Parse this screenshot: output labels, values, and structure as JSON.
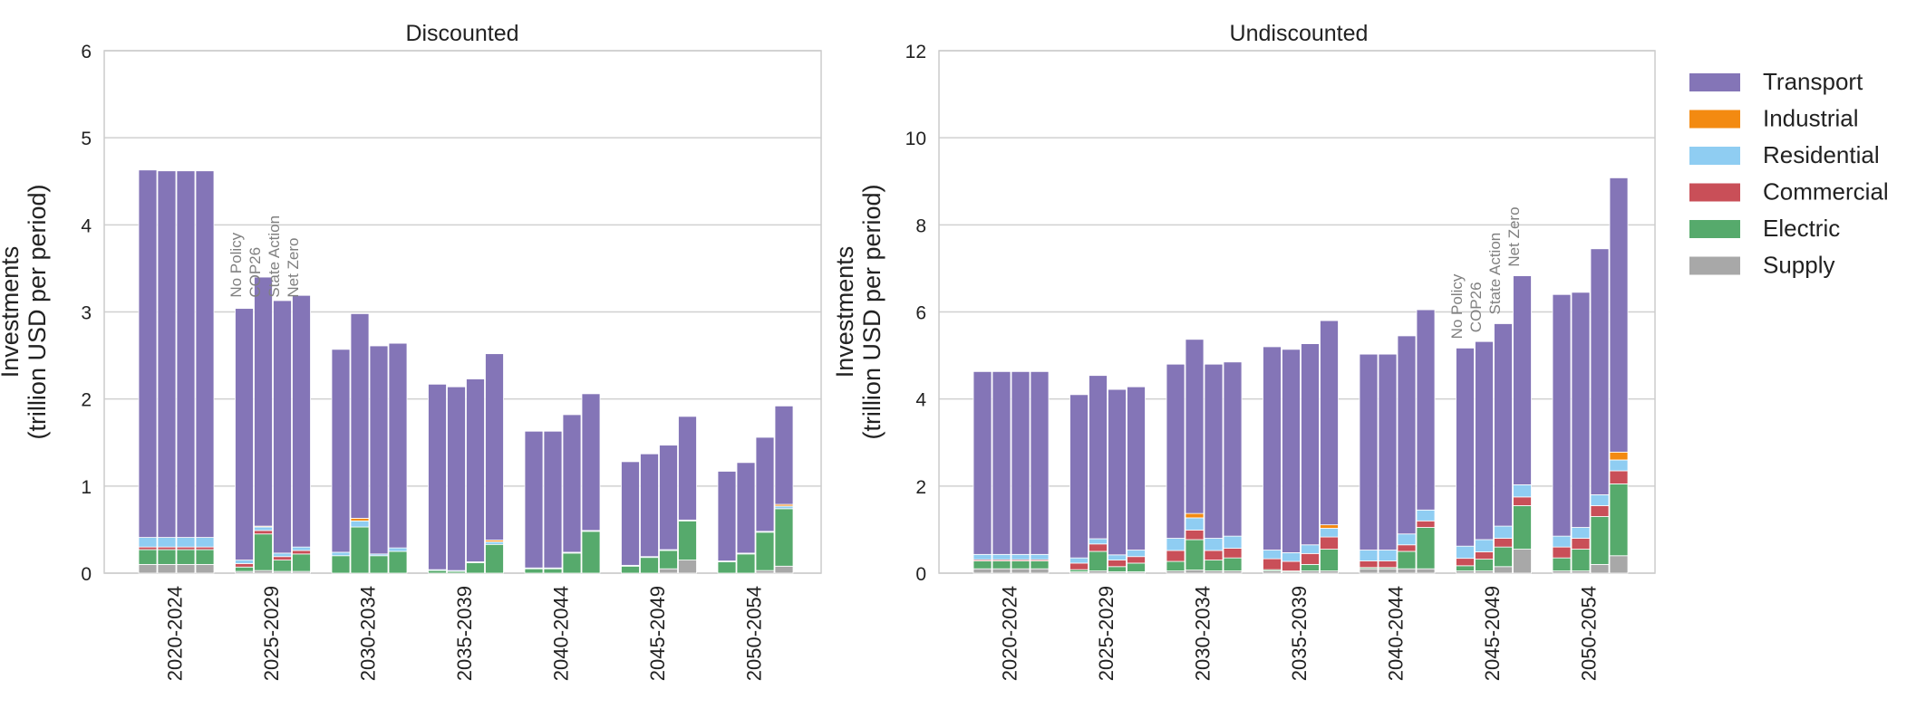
{
  "colors": {
    "Transport": "#8475b7",
    "Industrial": "#f38a11",
    "Residential": "#8fcdf2",
    "Commercial": "#c94f58",
    "Electric": "#56aa6c",
    "Supply": "#a8a8a8"
  },
  "legend": {
    "entries": [
      "Transport",
      "Industrial",
      "Residential",
      "Commercial",
      "Electric",
      "Supply"
    ],
    "placement": "right"
  },
  "scenario_labels": [
    "No Policy",
    "COP26",
    "State Action",
    "Net Zero"
  ],
  "chart_data": [
    {
      "type": "bar",
      "stacked": true,
      "title": "Discounted",
      "ylabel": "Investments\n(trillion USD per period)",
      "ylim": [
        0,
        6
      ],
      "yticks": [
        0,
        1,
        2,
        3,
        4,
        5,
        6
      ],
      "grid": true,
      "categories": [
        "2020-2024",
        "2025-2029",
        "2030-2034",
        "2035-2039",
        "2040-2044",
        "2045-2049",
        "2050-2054"
      ],
      "scenario_annotation_category": "2025-2029",
      "stack_order": [
        "Supply",
        "Electric",
        "Commercial",
        "Residential",
        "Industrial",
        "Transport"
      ],
      "series": [
        {
          "name": "Supply",
          "values": [
            [
              0.1,
              0.1,
              0.1,
              0.1
            ],
            [
              0.02,
              0.03,
              0.02,
              0.02
            ],
            [
              0.0,
              0.0,
              0.0,
              0.0
            ],
            [
              0.0,
              0.0,
              0.0,
              0.0
            ],
            [
              0.0,
              0.0,
              0.0,
              0.0
            ],
            [
              0.0,
              0.0,
              0.05,
              0.15
            ],
            [
              0.0,
              0.0,
              0.03,
              0.08
            ]
          ]
        },
        {
          "name": "Electric",
          "values": [
            [
              0.17,
              0.17,
              0.17,
              0.17
            ],
            [
              0.05,
              0.42,
              0.13,
              0.2
            ],
            [
              0.2,
              0.53,
              0.2,
              0.25
            ],
            [
              0.03,
              0.02,
              0.12,
              0.33
            ],
            [
              0.05,
              0.05,
              0.23,
              0.48
            ],
            [
              0.08,
              0.18,
              0.21,
              0.45
            ],
            [
              0.13,
              0.22,
              0.44,
              0.66
            ]
          ]
        },
        {
          "name": "Commercial",
          "values": [
            [
              0.03,
              0.03,
              0.03,
              0.03
            ],
            [
              0.04,
              0.04,
              0.04,
              0.04
            ],
            [
              0.0,
              0.0,
              0.0,
              0.0
            ],
            [
              0.0,
              0.0,
              0.0,
              0.0
            ],
            [
              0.0,
              0.0,
              0.0,
              0.0
            ],
            [
              0.0,
              0.0,
              0.0,
              0.0
            ],
            [
              0.0,
              0.0,
              0.0,
              0.0
            ]
          ]
        },
        {
          "name": "Residential",
          "values": [
            [
              0.11,
              0.11,
              0.11,
              0.11
            ],
            [
              0.04,
              0.04,
              0.04,
              0.04
            ],
            [
              0.04,
              0.07,
              0.02,
              0.04
            ],
            [
              0.01,
              0.01,
              0.01,
              0.03
            ],
            [
              0.01,
              0.01,
              0.01,
              0.01
            ],
            [
              0.01,
              0.01,
              0.01,
              0.01
            ],
            [
              0.01,
              0.01,
              0.01,
              0.03
            ]
          ]
        },
        {
          "name": "Industrial",
          "values": [
            [
              0.0,
              0.0,
              0.0,
              0.0
            ],
            [
              0.0,
              0.01,
              0.0,
              0.0
            ],
            [
              0.0,
              0.03,
              0.0,
              0.0
            ],
            [
              0.0,
              0.0,
              0.0,
              0.02
            ],
            [
              0.0,
              0.0,
              0.0,
              0.0
            ],
            [
              0.0,
              0.0,
              0.0,
              0.0
            ],
            [
              0.0,
              0.0,
              0.0,
              0.02
            ]
          ]
        },
        {
          "name": "Transport",
          "values": [
            [
              4.22,
              4.21,
              4.21,
              4.21
            ],
            [
              2.89,
              2.86,
              2.9,
              2.89
            ],
            [
              2.33,
              2.35,
              2.39,
              2.35
            ],
            [
              2.13,
              2.11,
              2.1,
              2.14
            ],
            [
              1.57,
              1.57,
              1.58,
              1.57
            ],
            [
              1.19,
              1.18,
              1.2,
              1.19
            ],
            [
              1.03,
              1.04,
              1.08,
              1.13
            ]
          ]
        }
      ]
    },
    {
      "type": "bar",
      "stacked": true,
      "title": "Undiscounted",
      "ylabel": "Investments\n(trillion USD per period)",
      "ylim": [
        0,
        12
      ],
      "yticks": [
        0,
        2,
        4,
        6,
        8,
        10,
        12
      ],
      "grid": true,
      "categories": [
        "2020-2024",
        "2025-2029",
        "2030-2034",
        "2035-2039",
        "2040-2044",
        "2045-2049",
        "2050-2054"
      ],
      "scenario_annotation_category": "2045-2049",
      "stack_order": [
        "Supply",
        "Electric",
        "Commercial",
        "Residential",
        "Industrial",
        "Transport"
      ],
      "series": [
        {
          "name": "Supply",
          "values": [
            [
              0.1,
              0.1,
              0.1,
              0.1
            ],
            [
              0.03,
              0.05,
              0.03,
              0.03
            ],
            [
              0.05,
              0.07,
              0.05,
              0.05
            ],
            [
              0.05,
              0.03,
              0.05,
              0.05
            ],
            [
              0.1,
              0.1,
              0.1,
              0.1
            ],
            [
              0.05,
              0.05,
              0.15,
              0.55
            ],
            [
              0.05,
              0.05,
              0.2,
              0.4
            ]
          ]
        },
        {
          "name": "Electric",
          "values": [
            [
              0.18,
              0.18,
              0.18,
              0.18
            ],
            [
              0.05,
              0.45,
              0.12,
              0.2
            ],
            [
              0.22,
              0.7,
              0.25,
              0.3
            ],
            [
              0.03,
              0.02,
              0.15,
              0.5
            ],
            [
              0.03,
              0.03,
              0.4,
              0.95
            ],
            [
              0.12,
              0.27,
              0.45,
              1.0
            ],
            [
              0.3,
              0.5,
              1.1,
              1.65
            ]
          ]
        },
        {
          "name": "Commercial",
          "values": [
            [
              0.03,
              0.03,
              0.03,
              0.03
            ],
            [
              0.15,
              0.17,
              0.15,
              0.15
            ],
            [
              0.25,
              0.22,
              0.22,
              0.22
            ],
            [
              0.25,
              0.22,
              0.25,
              0.28
            ],
            [
              0.15,
              0.15,
              0.15,
              0.15
            ],
            [
              0.17,
              0.17,
              0.2,
              0.2
            ],
            [
              0.25,
              0.25,
              0.25,
              0.3
            ]
          ]
        },
        {
          "name": "Residential",
          "values": [
            [
              0.12,
              0.12,
              0.12,
              0.12
            ],
            [
              0.12,
              0.12,
              0.12,
              0.15
            ],
            [
              0.28,
              0.28,
              0.28,
              0.28
            ],
            [
              0.2,
              0.2,
              0.2,
              0.2
            ],
            [
              0.25,
              0.25,
              0.25,
              0.25
            ],
            [
              0.28,
              0.28,
              0.28,
              0.28
            ],
            [
              0.25,
              0.25,
              0.25,
              0.25
            ]
          ]
        },
        {
          "name": "Industrial",
          "values": [
            [
              0.0,
              0.0,
              0.0,
              0.0
            ],
            [
              0.0,
              0.0,
              0.0,
              0.0
            ],
            [
              0.0,
              0.1,
              0.0,
              0.0
            ],
            [
              0.0,
              0.0,
              0.0,
              0.08
            ],
            [
              0.0,
              0.0,
              0.0,
              0.0
            ],
            [
              0.0,
              0.0,
              0.0,
              0.0
            ],
            [
              0.0,
              0.0,
              0.0,
              0.18
            ]
          ]
        },
        {
          "name": "Transport",
          "values": [
            [
              4.2,
              4.2,
              4.2,
              4.2
            ],
            [
              3.75,
              3.75,
              3.8,
              3.75
            ],
            [
              4.0,
              4.0,
              4.0,
              4.0
            ],
            [
              4.67,
              4.67,
              4.62,
              4.69
            ],
            [
              4.5,
              4.5,
              4.55,
              4.6
            ],
            [
              4.55,
              4.55,
              4.65,
              4.8
            ],
            [
              5.55,
              5.4,
              5.65,
              6.3
            ]
          ]
        }
      ]
    }
  ]
}
